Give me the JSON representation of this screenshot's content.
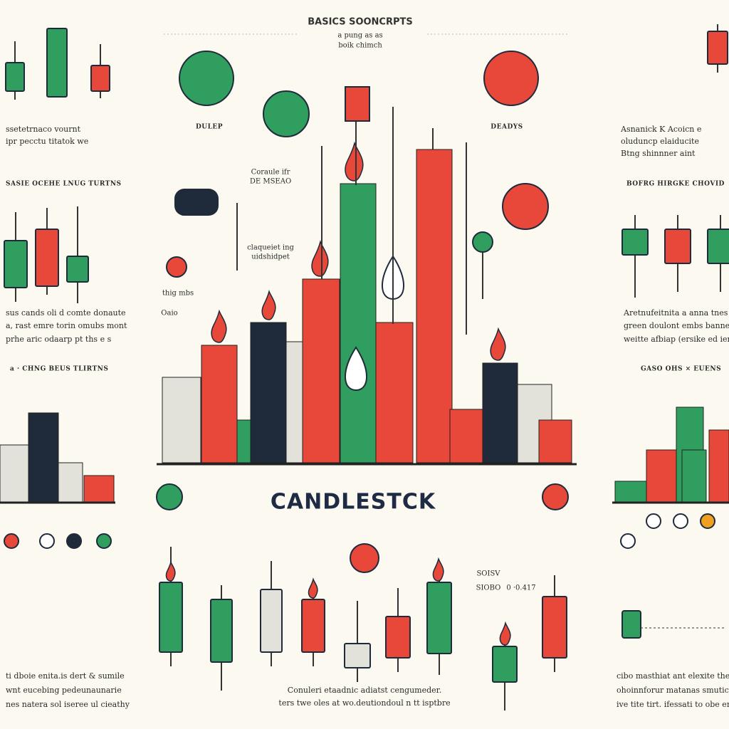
{
  "header": {
    "title": "BASICS SOONCRPTS",
    "subtitle_1": "a pung as as",
    "subtitle_2": "boik chimch"
  },
  "center": {
    "title": "CANDLESTCK",
    "label_left": "DULEP",
    "label_right": "DEADYS",
    "note_1a": "Coraule ifr",
    "note_1b": "DE MSEAO",
    "note_2a": "claqueiet ing",
    "note_2b": "uidshidpet",
    "note_3a": "thig mbs",
    "note_3b": "Oaio",
    "side_1": "SOISV",
    "side_2": "SIOBO",
    "side_3": "0 ·0.417",
    "footer_1": "Conuleri etaadnic adiatst cengumeder.",
    "footer_2": "ters twe oles at wo.deutiondoul n tt isptbre"
  },
  "left": {
    "text_1": [
      "ssetetrnaco vournt",
      "ipr pecctu titatok we"
    ],
    "heading_2": "SASIE OCEHE LNUG TURTNS",
    "text_2": [
      "sus cands oli d comte donaute",
      "a, rast emre torin omubs mont",
      "prhe aric odaarp pt ths e s"
    ],
    "heading_3": "a · CHNG BEUS TLIRTNS",
    "text_3": [
      "ti dboie enita.is dert & sumile",
      "wnt eucebing pedeunaunarie",
      "nes natera sol iseree ul cieathy"
    ]
  },
  "right": {
    "text_1": [
      "Asnanick K Acoicn e",
      "oluduncp elaiducite",
      "Btng shinnner aint"
    ],
    "heading_2": "BOFRG HIRGKE CHOVID",
    "text_2": [
      "Aretnufeitnita a anna tnes rh",
      "green doulont embs bannerms",
      "weitte afbiap (ersike ed ienty"
    ],
    "heading_3": "GASO OHS × EUENS",
    "text_3": [
      "cibo masthiat ant elexite ther",
      "ohoinnforur matanas smutices",
      "ive tite tirt. ifessati to obe er"
    ]
  }
}
